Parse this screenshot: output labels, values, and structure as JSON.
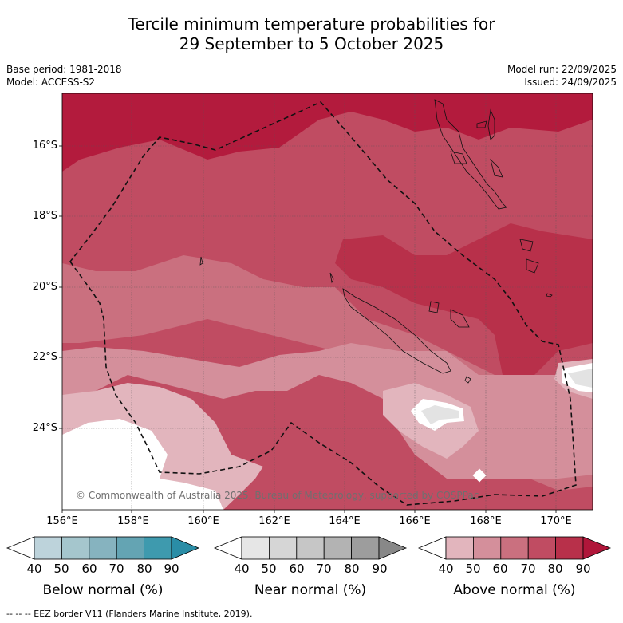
{
  "title_line1": "Tercile minimum temperature probabilities for",
  "title_line2": "29 September to 5 October 2025",
  "base_period": "Base period: 1981-2018",
  "model": "Model: ACCESS-S2",
  "model_run": "Model run: 22/09/2025",
  "issued": "Issued: 24/09/2025",
  "lat_labels": [
    "16°S",
    "18°S",
    "20°S",
    "22°S",
    "24°S"
  ],
  "lon_labels": [
    "156°E",
    "158°E",
    "160°E",
    "162°E",
    "164°E",
    "166°E",
    "168°E",
    "170°E"
  ],
  "copyright": "© Commonwealth of Australia 2025, Bureau of Meteorology, supported by COSPPac",
  "colorbars": [
    {
      "label": "Below normal (%)",
      "ticks": [
        "40",
        "50",
        "60",
        "70",
        "80",
        "90"
      ],
      "colors": [
        "#ffffff",
        "#bdd3db",
        "#a5c6cd",
        "#86b3bf",
        "#64a4b3",
        "#3e9aae",
        "#2a8da6"
      ]
    },
    {
      "label": "Near normal (%)",
      "ticks": [
        "40",
        "50",
        "60",
        "70",
        "80",
        "90"
      ],
      "colors": [
        "#ffffff",
        "#e6e6e6",
        "#d6d6d6",
        "#c6c6c6",
        "#b3b3b3",
        "#9d9d9d",
        "#888888"
      ]
    },
    {
      "label": "Above normal (%)",
      "ticks": [
        "40",
        "50",
        "60",
        "70",
        "80",
        "90"
      ],
      "colors": [
        "#ffffff",
        "#e2b5bd",
        "#d48f9b",
        "#ca707f",
        "#c04c62",
        "#b8304a",
        "#b0163a"
      ]
    }
  ],
  "footer": "--  --  -- EEZ border V11 (Flanders Marine Institute, 2019)."
}
